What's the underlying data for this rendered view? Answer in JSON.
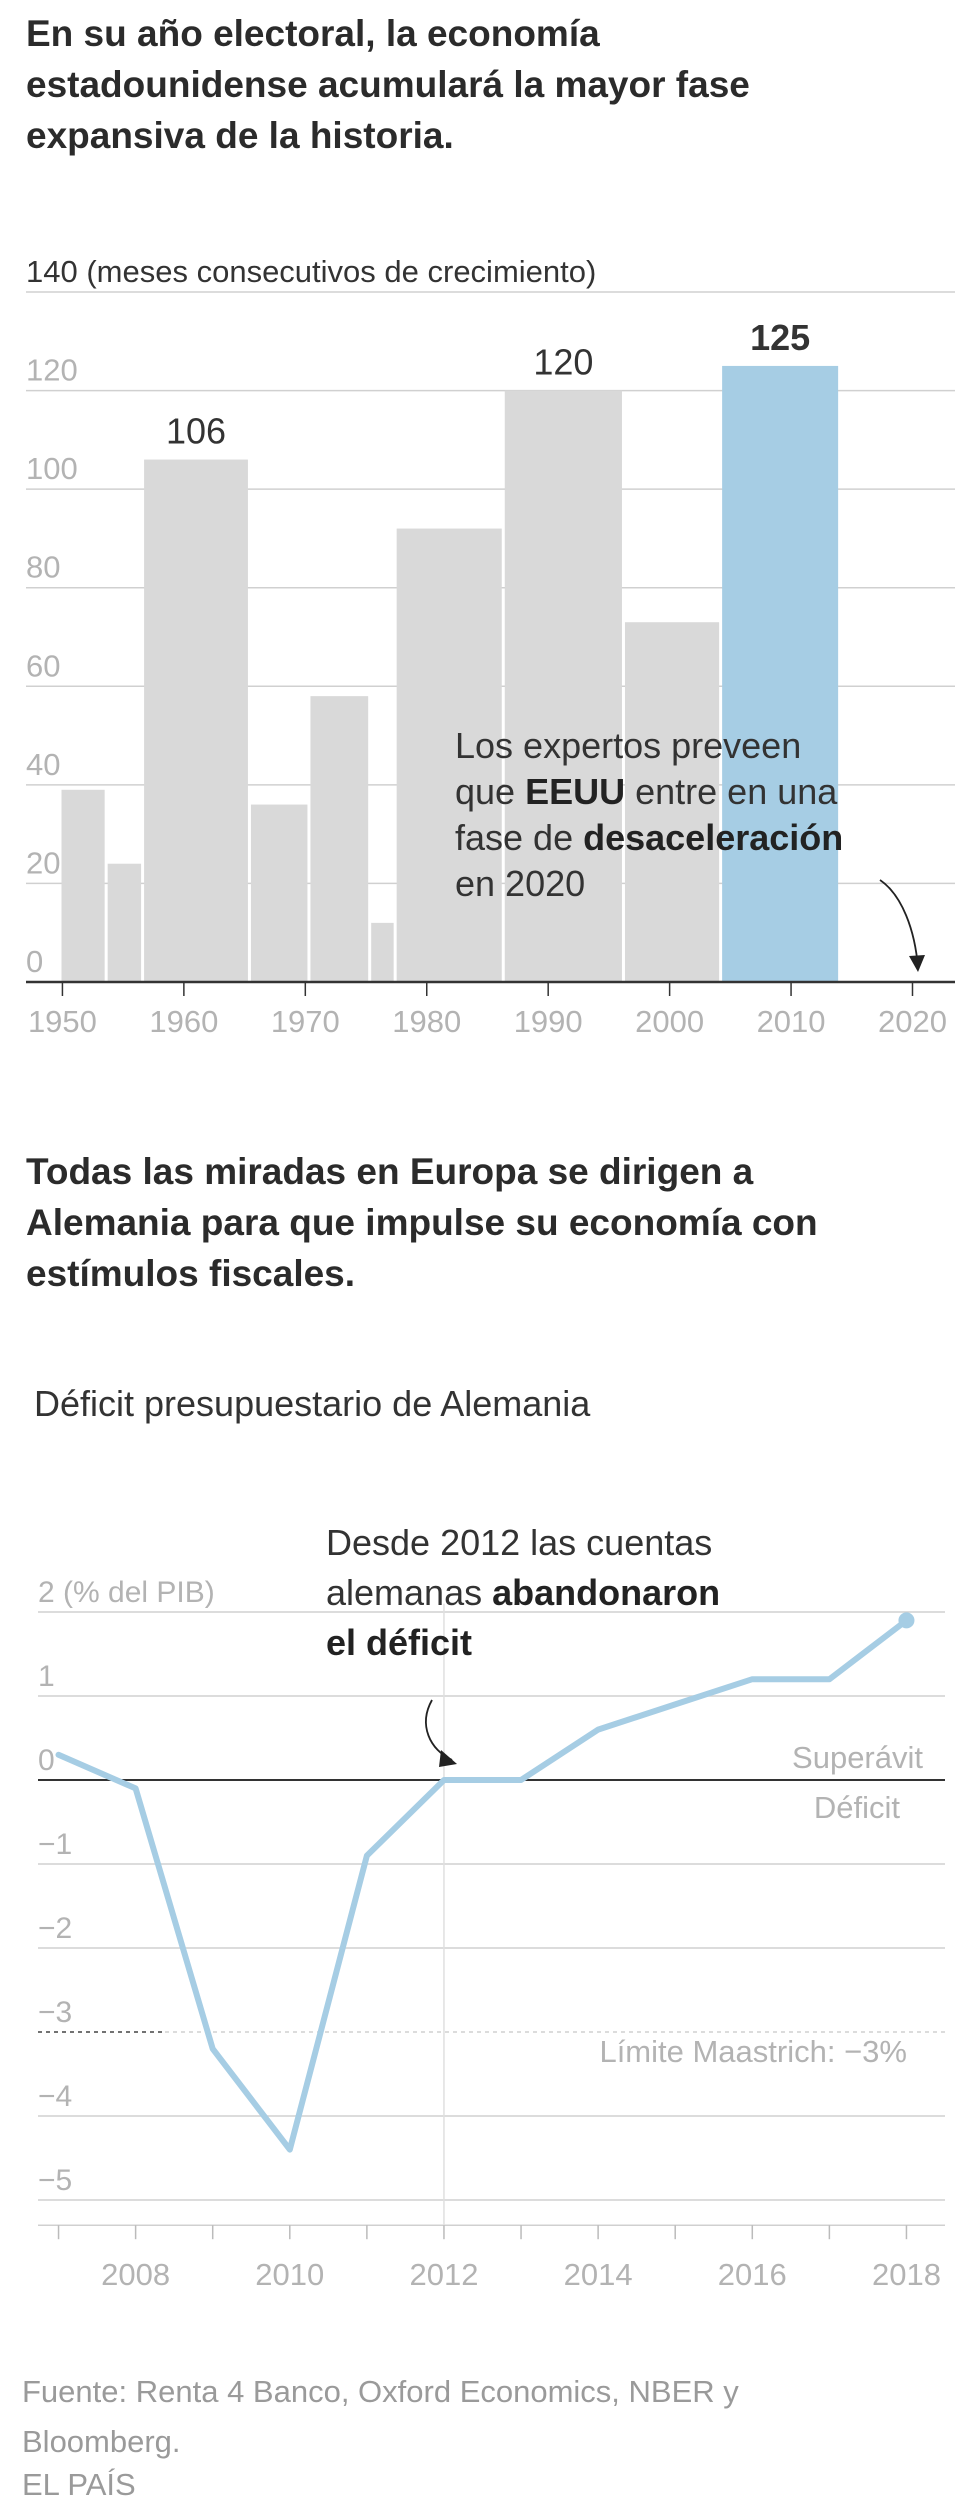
{
  "headlines": {
    "chart1": "En su año electoral, la economía estadounidense acumulará la mayor fase expansiva de la historia.",
    "chart2": "Todas las miradas en Europa se dirigen a Alemania para que impulse su economía con estímulos fiscales."
  },
  "colors": {
    "bar_grey": "#d9d9d9",
    "bar_highlight": "#a6cde4",
    "line": "#a6cde4",
    "axis": "#333333",
    "grid": "#d0d0d0",
    "tick_text": "#b3b3b3",
    "value_text": "#333333"
  },
  "chart_data": [
    {
      "type": "bar",
      "title": "",
      "ylabel": "(meses consecutivos de crecimiento)",
      "ylim": [
        0,
        140
      ],
      "yticks": [
        {
          "v": 0,
          "label": "0"
        },
        {
          "v": 20,
          "label": "20"
        },
        {
          "v": 40,
          "label": "40"
        },
        {
          "v": 60,
          "label": "60"
        },
        {
          "v": 80,
          "label": "80"
        },
        {
          "v": 100,
          "label": "100"
        },
        {
          "v": 120,
          "label": "120"
        },
        {
          "v": 140,
          "label": "140"
        }
      ],
      "xlim": [
        1947,
        2023.5
      ],
      "xticks": [
        {
          "v": 1950,
          "label": "1950"
        },
        {
          "v": 1960,
          "label": "1960"
        },
        {
          "v": 1970,
          "label": "1970"
        },
        {
          "v": 1980,
          "label": "1980"
        },
        {
          "v": 1990,
          "label": "1990"
        },
        {
          "v": 2000,
          "label": "2000"
        },
        {
          "v": 2010,
          "label": "2010"
        },
        {
          "v": 2020,
          "label": "2020"
        }
      ],
      "grid": true,
      "bars": [
        {
          "start": 1949.8,
          "end": 1953.6,
          "value": 39,
          "label": ""
        },
        {
          "start": 1953.6,
          "end": 1956.6,
          "value": 24,
          "label": ""
        },
        {
          "start": 1956.6,
          "end": 1965.4,
          "value": 106,
          "label": "106",
          "label_bold": false
        },
        {
          "start": 1965.4,
          "end": 1970.3,
          "value": 36,
          "label": ""
        },
        {
          "start": 1970.3,
          "end": 1975.3,
          "value": 58,
          "label": ""
        },
        {
          "start": 1975.3,
          "end": 1977.4,
          "value": 12,
          "label": ""
        },
        {
          "start": 1977.4,
          "end": 1986.3,
          "value": 92,
          "label": ""
        },
        {
          "start": 1986.3,
          "end": 1996.2,
          "value": 120,
          "label": "120",
          "label_bold": false
        },
        {
          "start": 1996.2,
          "end": 2004.2,
          "value": 73,
          "label": ""
        },
        {
          "start": 2004.2,
          "end": 2014.0,
          "value": 125,
          "label": "125",
          "label_bold": true,
          "highlight": true
        }
      ],
      "annotation": {
        "lines": [
          [
            {
              "t": "Los expertos preveen",
              "b": false
            }
          ],
          [
            {
              "t": "que ",
              "b": false
            },
            {
              "t": "EEUU",
              "b": true
            },
            {
              "t": " entre en una",
              "b": false
            }
          ],
          [
            {
              "t": "fase de ",
              "b": false
            },
            {
              "t": "desaceleración",
              "b": true
            }
          ],
          [
            {
              "t": "en 2020",
              "b": false
            }
          ]
        ]
      }
    },
    {
      "type": "line",
      "title": "Déficit presupuestario de Alemania",
      "ylabel": "(% del PIB)",
      "ylim": [
        -5.3,
        2.3
      ],
      "xlim": [
        2006.5,
        2018.5
      ],
      "yticks": [
        {
          "v": 2,
          "label": "2"
        },
        {
          "v": 1,
          "label": "1"
        },
        {
          "v": 0,
          "label": "0"
        },
        {
          "v": -1,
          "label": "−1"
        },
        {
          "v": -2,
          "label": "−2"
        },
        {
          "v": -3,
          "label": "−3"
        },
        {
          "v": -4,
          "label": "−4"
        },
        {
          "v": -5,
          "label": "−5"
        }
      ],
      "xticks": [
        {
          "v": 2008,
          "label": "2008"
        },
        {
          "v": 2010,
          "label": "2010"
        },
        {
          "v": 2012,
          "label": "2012"
        },
        {
          "v": 2014,
          "label": "2014"
        },
        {
          "v": 2016,
          "label": "2016"
        },
        {
          "v": 2018,
          "label": "2018"
        }
      ],
      "grid": true,
      "series": [
        {
          "x": [
            2007,
            2008,
            2009,
            2010,
            2011,
            2012,
            2013,
            2014,
            2015,
            2016,
            2017,
            2018
          ],
          "values": [
            0.3,
            -0.1,
            -3.2,
            -4.4,
            -0.9,
            0.0,
            0.0,
            0.6,
            0.9,
            1.2,
            1.2,
            1.9
          ]
        }
      ],
      "labels": {
        "surplus": "Superávit",
        "deficit": "Déficit",
        "maastricht": "Límite Maastrich: −3%"
      },
      "annotation": {
        "lines": [
          [
            {
              "t": "Desde 2012 las cuentas",
              "b": false
            }
          ],
          [
            {
              "t": "alemanas ",
              "b": false
            },
            {
              "t": "abandonaron",
              "b": true
            }
          ],
          [
            {
              "t": "el déficit",
              "b": true
            }
          ]
        ]
      }
    }
  ],
  "footer": {
    "source": "Fuente: Renta 4 Banco, Oxford Economics, NBER y Bloomberg.",
    "brand": "EL PAÍS"
  }
}
